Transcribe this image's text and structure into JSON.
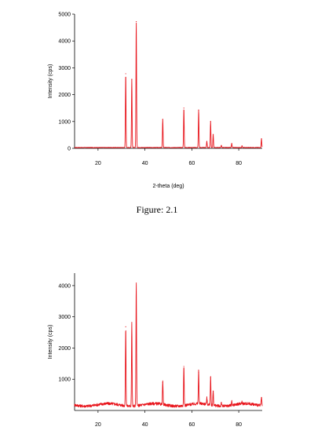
{
  "figure_caption": "Figure: 2.1",
  "chart_data": [
    {
      "type": "line",
      "xlabel": "2-theta (deg)",
      "ylabel": "Intensity (cps)",
      "xlim": [
        10,
        90
      ],
      "ylim": [
        0,
        5000
      ],
      "x_ticks": [
        "20",
        "40",
        "60",
        "80"
      ],
      "y_ticks": [
        "0",
        "1000",
        "2000",
        "3000",
        "4000",
        "5000"
      ],
      "color": "#e8141b",
      "baseline": 30,
      "peaks": [
        {
          "x": 31.8,
          "y": 2780
        },
        {
          "x": 34.4,
          "y": 2570
        },
        {
          "x": 36.3,
          "y": 4720
        },
        {
          "x": 47.6,
          "y": 1080
        },
        {
          "x": 56.6,
          "y": 1500
        },
        {
          "x": 62.9,
          "y": 1430
        },
        {
          "x": 66.4,
          "y": 260
        },
        {
          "x": 68.0,
          "y": 1000
        },
        {
          "x": 69.1,
          "y": 520
        },
        {
          "x": 72.6,
          "y": 110
        },
        {
          "x": 77.0,
          "y": 180
        },
        {
          "x": 81.4,
          "y": 90
        },
        {
          "x": 89.7,
          "y": 360
        }
      ]
    },
    {
      "type": "line",
      "xlabel": "",
      "ylabel": "Intensity (cps)",
      "xlim": [
        10,
        90
      ],
      "ylim": [
        0,
        4400
      ],
      "x_ticks": [
        "20",
        "40",
        "60",
        "80"
      ],
      "y_ticks": [
        "1000",
        "2000",
        "3000",
        "4000"
      ],
      "color": "#e8141b",
      "baseline": 150,
      "peaks": [
        {
          "x": 31.8,
          "y": 2680
        },
        {
          "x": 34.4,
          "y": 2820
        },
        {
          "x": 36.3,
          "y": 4080
        },
        {
          "x": 47.6,
          "y": 900
        },
        {
          "x": 56.6,
          "y": 1410
        },
        {
          "x": 62.9,
          "y": 1230
        },
        {
          "x": 66.4,
          "y": 350
        },
        {
          "x": 68.0,
          "y": 1050
        },
        {
          "x": 69.1,
          "y": 620
        },
        {
          "x": 72.6,
          "y": 260
        },
        {
          "x": 77.0,
          "y": 270
        },
        {
          "x": 81.4,
          "y": 220
        },
        {
          "x": 89.7,
          "y": 420
        }
      ]
    }
  ]
}
